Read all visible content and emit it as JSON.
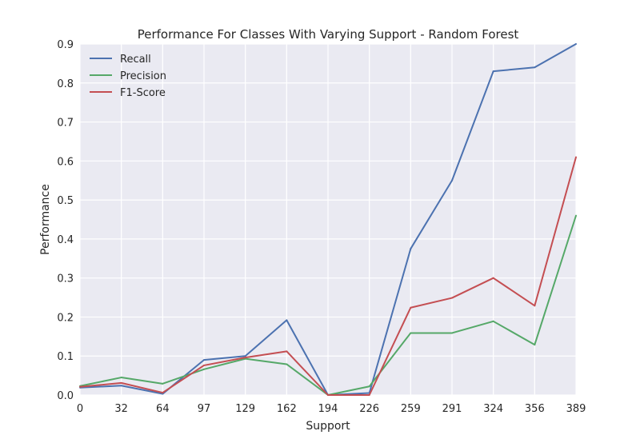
{
  "chart_data": {
    "type": "line",
    "title": "Performance For Classes With Varying Support - Random Forest",
    "xlabel": "Support",
    "ylabel": "Performance",
    "categories": [
      "0",
      "32",
      "64",
      "97",
      "129",
      "162",
      "194",
      "226",
      "259",
      "291",
      "324",
      "356",
      "389"
    ],
    "ylim": [
      0,
      0.9
    ],
    "yticks": [
      "0.0",
      "0.1",
      "0.2",
      "0.3",
      "0.4",
      "0.5",
      "0.6",
      "0.7",
      "0.8",
      "0.9"
    ],
    "grid": true,
    "legend_position": "top-left",
    "background": "#EAEAF2",
    "series": [
      {
        "name": "Recall",
        "color": "#4C72B0",
        "values": [
          0.019,
          0.024,
          0.003,
          0.09,
          0.1,
          0.192,
          0.0,
          0.005,
          0.375,
          0.55,
          0.83,
          0.84,
          0.9
        ]
      },
      {
        "name": "Precision",
        "color": "#55A868",
        "values": [
          0.023,
          0.045,
          0.029,
          0.066,
          0.093,
          0.079,
          0.0,
          0.022,
          0.159,
          0.159,
          0.189,
          0.129,
          0.46
        ]
      },
      {
        "name": "F1-Score",
        "color": "#C44E52",
        "values": [
          0.021,
          0.031,
          0.006,
          0.076,
          0.096,
          0.112,
          0.0,
          0.0,
          0.224,
          0.249,
          0.3,
          0.229,
          0.61
        ]
      }
    ]
  }
}
